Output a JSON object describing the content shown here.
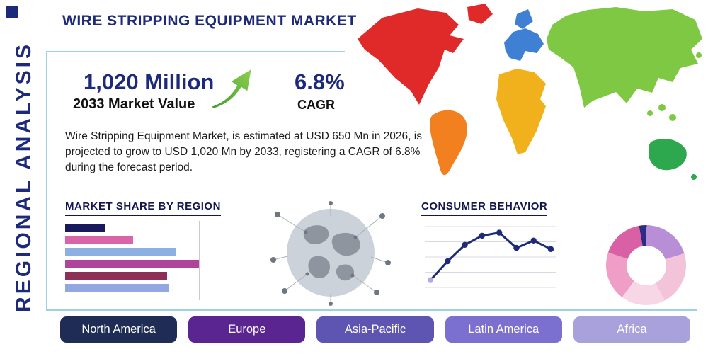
{
  "title": "WIRE STRIPPING EQUIPMENT MARKET",
  "side_label": "REGIONAL ANALYSIS",
  "stats": {
    "value": "1,020 Million",
    "value_label": "2033 Market Value",
    "cagr": "6.8%",
    "cagr_label": "CAGR",
    "description": "Wire Stripping Equipment Market, is estimated at USD 650 Mn in 2026, is projected to grow to USD 1,020 Mn by 2033, registering a CAGR of 6.8% during the forecast period."
  },
  "sections": {
    "market_share": "MARKET SHARE BY REGION",
    "consumer_behavior": "CONSUMER BEHAVIOR"
  },
  "regions": [
    {
      "label": "North America",
      "color": "#1f2c56"
    },
    {
      "label": "Europe",
      "color": "#5a2491"
    },
    {
      "label": "Asia-Pacific",
      "color": "#5e55b2"
    },
    {
      "label": "Latin America",
      "color": "#7b6fd0"
    },
    {
      "label": "Africa",
      "color": "#a9a1dc"
    }
  ],
  "map_colors": {
    "north_america": "#e02a2a",
    "greenland": "#e02a2a",
    "south_america": "#f2801e",
    "europe": "#3f7fd4",
    "scandinavia": "#3f7fd4",
    "africa": "#f0b11c",
    "asia": "#7ec843",
    "australia": "#2ea84f",
    "islands": "#7ec843"
  },
  "accents": {
    "navy": "#1d2a7a",
    "teal_rule": "#9fd2e0",
    "arrow_green": "#5cb536"
  },
  "chart_data": [
    {
      "id": "market_share_bars",
      "type": "bar",
      "orientation": "horizontal",
      "title": "MARKET SHARE BY REGION",
      "values": [
        28,
        48,
        78,
        95,
        72,
        73
      ],
      "xlim": [
        0,
        100
      ],
      "colors": [
        "#191a5e",
        "#d965a8",
        "#8cb0e2",
        "#b0439a",
        "#8e2f55",
        "#92a7e0"
      ],
      "grid": "single vertical gridline near max value",
      "note": "unlabeled relative market-share bars, top to bottom"
    },
    {
      "id": "consumer_behavior_line",
      "type": "line",
      "title": "CONSUMER BEHAVIOR",
      "x": [
        1,
        2,
        3,
        4,
        5,
        6,
        7,
        8
      ],
      "values": [
        12,
        43,
        70,
        85,
        90,
        65,
        77,
        63
      ],
      "ylim": [
        0,
        100
      ],
      "color": "#1d2a7a",
      "first_marker_color": "#b7a9e0",
      "grid": "horizontal"
    },
    {
      "id": "region_donut",
      "type": "pie",
      "donut": true,
      "title": "",
      "slices": [
        {
          "value": 3,
          "color": "#2c2c86"
        },
        {
          "value": 20,
          "color": "#b88fd6"
        },
        {
          "value": 22,
          "color": "#f3c3da"
        },
        {
          "value": 18,
          "color": "#f7d6e6"
        },
        {
          "value": 20,
          "color": "#ef9ec7"
        },
        {
          "value": 17,
          "color": "#d960a4"
        }
      ]
    }
  ]
}
